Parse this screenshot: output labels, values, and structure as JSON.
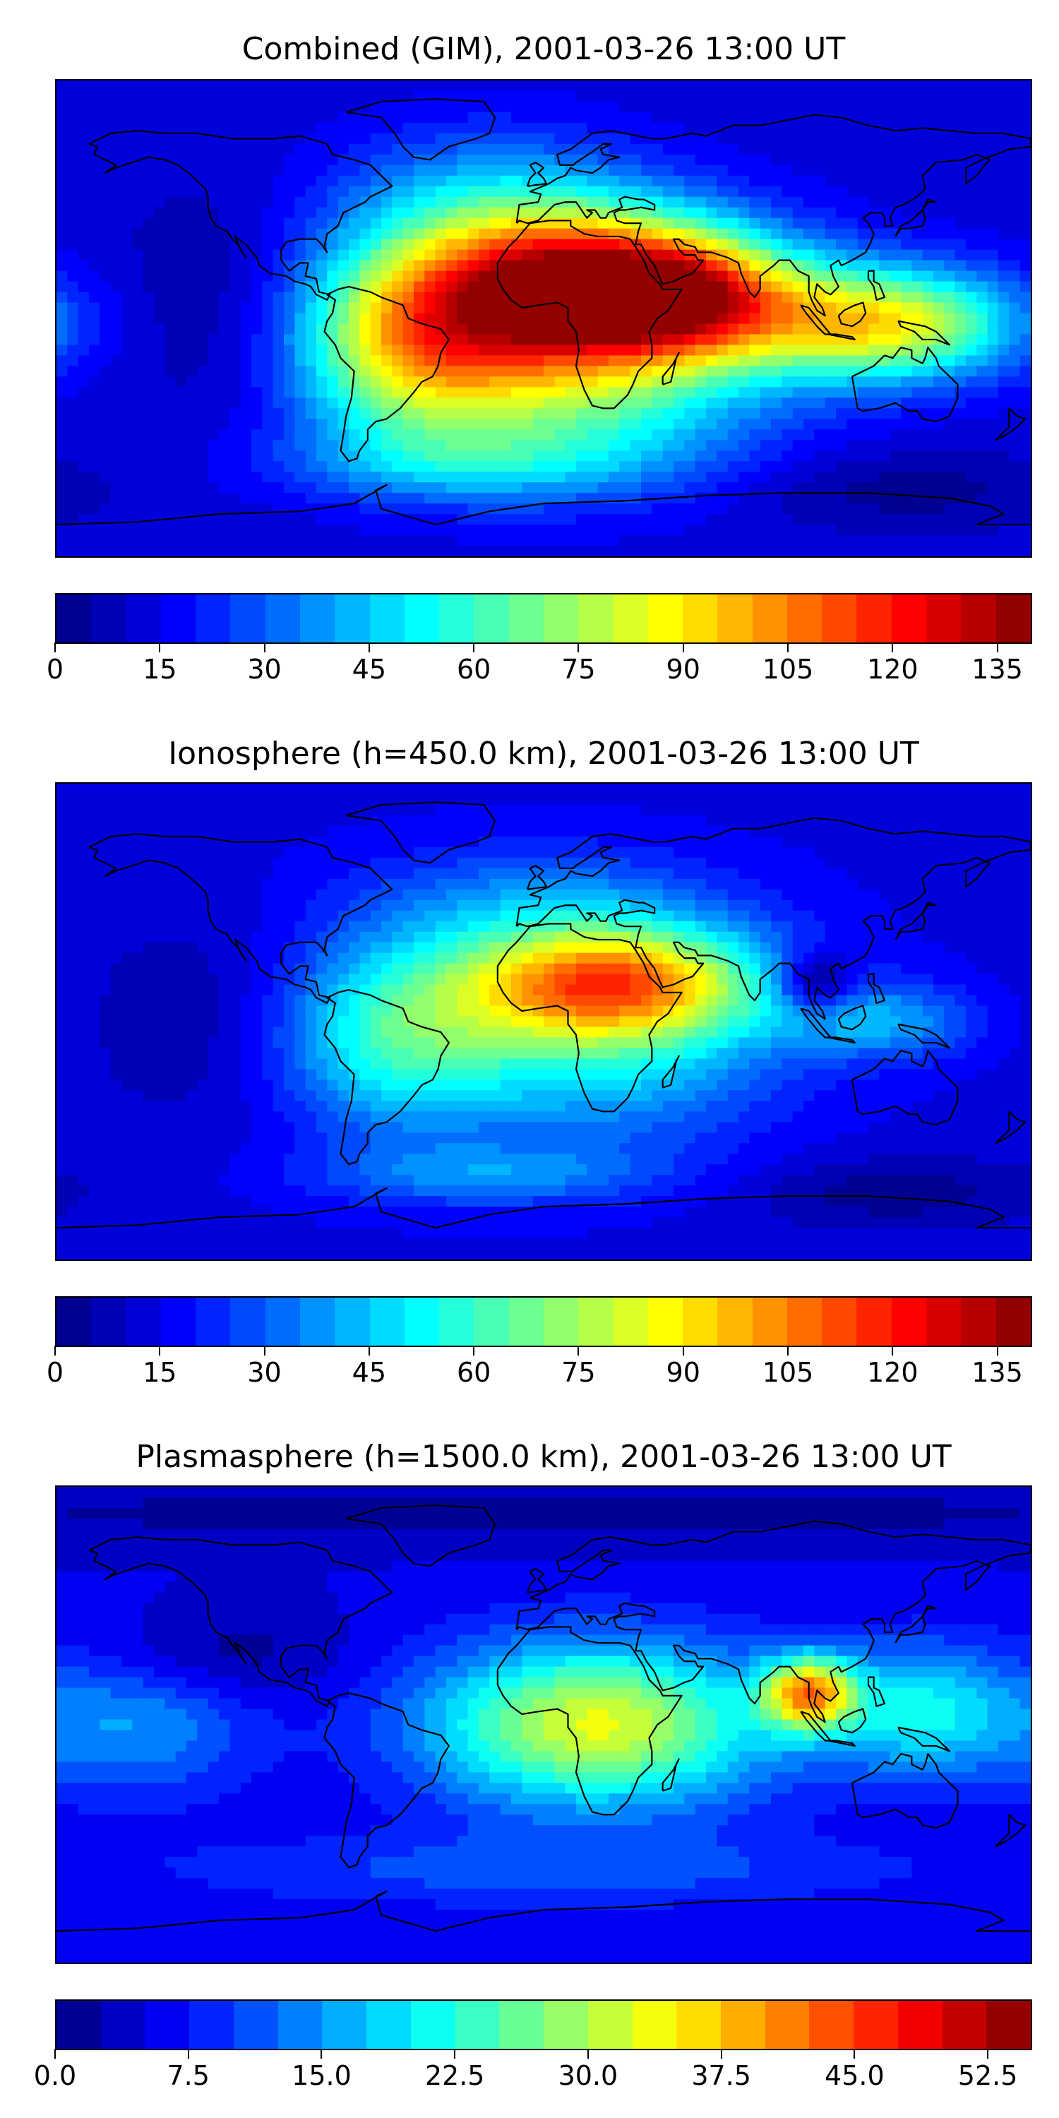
{
  "panels": [
    {
      "title": "Combined (GIM), 2001-03-26 13:00 UT",
      "colorbar": {
        "min": 0,
        "max": 140,
        "step": 5,
        "colormap": "jet",
        "tick_labels": [
          "0",
          "15",
          "30",
          "45",
          "60",
          "75",
          "90",
          "105",
          "120",
          "135"
        ],
        "tick_values": [
          0,
          15,
          30,
          45,
          60,
          75,
          90,
          105,
          120,
          135
        ]
      },
      "field": {
        "base": 12,
        "blobs": [
          {
            "lon": 15,
            "lat": 12,
            "amp": 120,
            "slon": 45,
            "slat": 20
          },
          {
            "lon": 55,
            "lat": 8,
            "amp": 45,
            "slon": 25,
            "slat": 15
          },
          {
            "lon": 125,
            "lat": -2,
            "amp": 75,
            "slon": 35,
            "slat": 15
          },
          {
            "lon": -50,
            "lat": -10,
            "amp": 55,
            "slon": 30,
            "slat": 25
          },
          {
            "lon": 10,
            "lat": -25,
            "amp": 50,
            "slon": 50,
            "slat": 25
          },
          {
            "lon": -20,
            "lat": 45,
            "amp": 25,
            "slon": 40,
            "slat": 20
          },
          {
            "lon": -30,
            "lat": -55,
            "amp": 20,
            "slon": 50,
            "slat": 10
          },
          {
            "lon": -120,
            "lat": 5,
            "amp": -8,
            "slon": 25,
            "slat": 30
          },
          {
            "lon": 130,
            "lat": -65,
            "amp": -10,
            "slon": 40,
            "slat": 10
          }
        ]
      }
    },
    {
      "title": "Ionosphere  (h=450.0 km), 2001-03-26 13:00 UT",
      "colorbar": {
        "min": 0,
        "max": 140,
        "step": 5,
        "colormap": "jet",
        "tick_labels": [
          "0",
          "15",
          "30",
          "45",
          "60",
          "75",
          "90",
          "105",
          "120",
          "135"
        ],
        "tick_values": [
          0,
          15,
          30,
          45,
          60,
          75,
          90,
          105,
          120,
          135
        ]
      },
      "field": {
        "base": 14,
        "blobs": [
          {
            "lon": 25,
            "lat": 15,
            "amp": 80,
            "slon": 40,
            "slat": 15
          },
          {
            "lon": 20,
            "lat": -10,
            "amp": 35,
            "slon": 45,
            "slat": 25
          },
          {
            "lon": -55,
            "lat": -5,
            "amp": 40,
            "slon": 30,
            "slat": 25
          },
          {
            "lon": 125,
            "lat": 0,
            "amp": 25,
            "slon": 25,
            "slat": 10
          },
          {
            "lon": 0,
            "lat": 45,
            "amp": 20,
            "slon": 45,
            "slat": 15
          },
          {
            "lon": -20,
            "lat": -58,
            "amp": 20,
            "slon": 45,
            "slat": 8
          },
          {
            "lon": 100,
            "lat": 15,
            "amp": -30,
            "slon": 10,
            "slat": 8
          },
          {
            "lon": -130,
            "lat": 0,
            "amp": -8,
            "slon": 30,
            "slat": 30
          },
          {
            "lon": 130,
            "lat": -65,
            "amp": -12,
            "slon": 40,
            "slat": 10
          }
        ]
      }
    },
    {
      "title": "Plasmasphere (h=1500.0 km), 2001-03-26 13:00 UT",
      "colorbar": {
        "min": 0,
        "max": 55,
        "step": 2.5,
        "colormap": "jet",
        "tick_labels": [
          "0.0",
          "7.5",
          "15.0",
          "22.5",
          "30.0",
          "37.5",
          "45.0",
          "52.5"
        ],
        "tick_values": [
          0,
          7.5,
          15,
          22.5,
          30,
          37.5,
          45,
          52.5
        ]
      },
      "field": {
        "base": 5,
        "blobs": [
          {
            "lon": 20,
            "lat": 0,
            "amp": 28,
            "slon": 45,
            "slat": 22
          },
          {
            "lon": 98,
            "lat": 12,
            "amp": 30,
            "slon": 12,
            "slat": 10
          },
          {
            "lon": 140,
            "lat": 5,
            "amp": 15,
            "slon": 25,
            "slat": 18
          },
          {
            "lon": -150,
            "lat": 0,
            "amp": 10,
            "slon": 30,
            "slat": 20
          },
          {
            "lon": -120,
            "lat": 25,
            "amp": -5,
            "slon": 30,
            "slat": 12
          },
          {
            "lon": 0,
            "lat": 80,
            "amp": -4,
            "slon": 180,
            "slat": 8
          },
          {
            "lon": 0,
            "lat": -55,
            "amp": 6,
            "slon": 100,
            "slat": 10
          }
        ]
      }
    }
  ]
}
